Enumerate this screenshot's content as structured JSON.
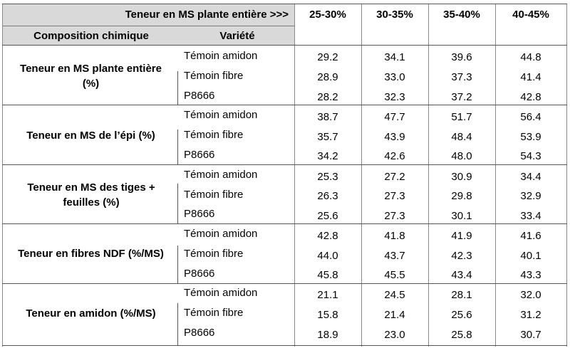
{
  "header": {
    "top_label": "Teneur en MS plante entière >>>",
    "composition_label": "Composition chimique",
    "variety_label": "Variété",
    "ranges": [
      "25-30%",
      "30-35%",
      "35-40%",
      "40-45%"
    ]
  },
  "groups": [
    {
      "title": "Teneur en MS plante entière (%)",
      "rows": [
        {
          "variety": "Témoin amidon",
          "values": [
            "29.2",
            "34.1",
            "39.6",
            "44.8"
          ]
        },
        {
          "variety": "Témoin fibre",
          "values": [
            "28.9",
            "33.0",
            "37.3",
            "41.4"
          ]
        },
        {
          "variety": "P8666",
          "values": [
            "28.2",
            "32.3",
            "37.2",
            "42.8"
          ]
        }
      ]
    },
    {
      "title": "Teneur en MS de l’épi (%)",
      "rows": [
        {
          "variety": "Témoin amidon",
          "values": [
            "38.7",
            "47.7",
            "51.7",
            "56.4"
          ]
        },
        {
          "variety": "Témoin fibre",
          "values": [
            "35.7",
            "43.9",
            "48.4",
            "53.9"
          ]
        },
        {
          "variety": "P8666",
          "values": [
            "34.2",
            "42.6",
            "48.0",
            "54.3"
          ]
        }
      ]
    },
    {
      "title": "Teneur en MS des tiges + feuilles (%)",
      "rows": [
        {
          "variety": "Témoin amidon",
          "values": [
            "25.3",
            "27.2",
            "30.9",
            "34.4"
          ]
        },
        {
          "variety": "Témoin fibre",
          "values": [
            "26.3",
            "27.3",
            "29.8",
            "32.9"
          ]
        },
        {
          "variety": "P8666",
          "values": [
            "25.6",
            "27.3",
            "30.1",
            "33.4"
          ]
        }
      ]
    },
    {
      "title": "Teneur en fibres NDF (%/MS)",
      "rows": [
        {
          "variety": "Témoin amidon",
          "values": [
            "42.8",
            "41.8",
            "41.9",
            "41.6"
          ]
        },
        {
          "variety": "Témoin fibre",
          "values": [
            "44.0",
            "43.7",
            "42.3",
            "40.1"
          ]
        },
        {
          "variety": "P8666",
          "values": [
            "45.8",
            "45.5",
            "43.4",
            "43.3"
          ]
        }
      ]
    },
    {
      "title": "Teneur en amidon (%/MS)",
      "rows": [
        {
          "variety": "Témoin amidon",
          "values": [
            "21.1",
            "24.5",
            "28.1",
            "32.0"
          ]
        },
        {
          "variety": "Témoin fibre",
          "values": [
            "15.8",
            "21.4",
            "25.6",
            "31.2"
          ]
        },
        {
          "variety": "P8666",
          "values": [
            "18.9",
            "23.0",
            "25.8",
            "30.7"
          ]
        }
      ]
    }
  ]
}
